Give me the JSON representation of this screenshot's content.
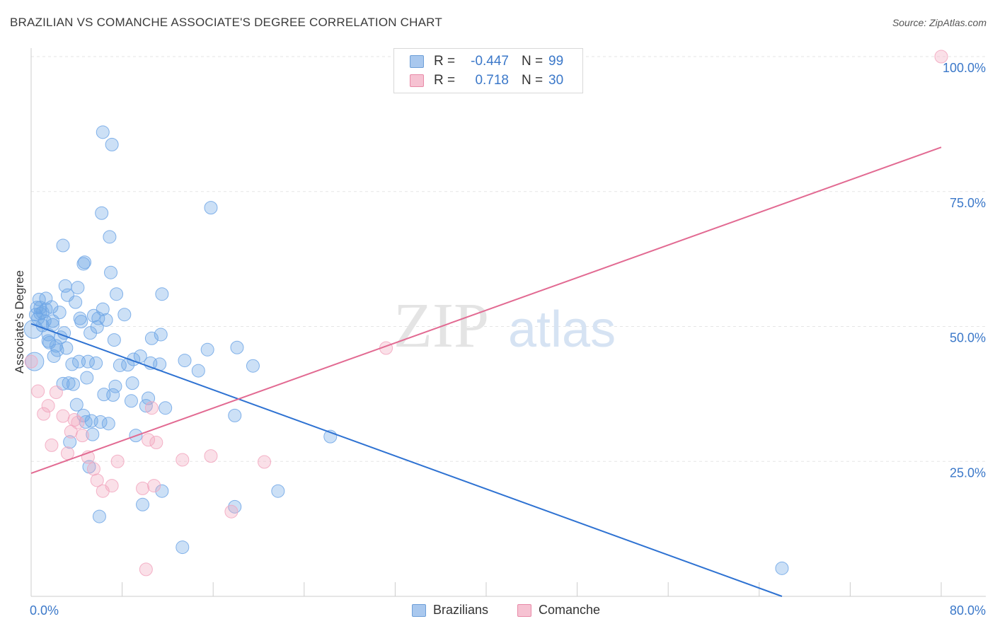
{
  "title": "BRAZILIAN VS COMANCHE ASSOCIATE'S DEGREE CORRELATION CHART",
  "source": "Source: ZipAtlas.com",
  "watermark": {
    "part1": "ZIP",
    "part2": "atlas"
  },
  "legend": {
    "rows": [
      {
        "r_label": "R =",
        "r_value": "-0.447",
        "n_label": "N =",
        "n_value": "99",
        "color": "#a9c8ee",
        "border": "#6e9fd8"
      },
      {
        "r_label": "R =",
        "r_value": "0.718",
        "n_label": "N =",
        "n_value": "30",
        "color": "#f6c2d2",
        "border": "#e88aa8"
      }
    ]
  },
  "bottom_legend": [
    {
      "label": "Brazilians",
      "color": "#a9c8ee",
      "border": "#6e9fd8"
    },
    {
      "label": "Comanche",
      "color": "#f6c2d2",
      "border": "#e88aa8"
    }
  ],
  "chart_data": {
    "type": "scatter",
    "title": "BRAZILIAN VS COMANCHE ASSOCIATE'S DEGREE CORRELATION CHART",
    "xlabel": "",
    "ylabel": "Associate's Degree",
    "xlim": [
      0,
      80
    ],
    "ylim": [
      0,
      102
    ],
    "x_tick_labels": {
      "left": "0.0%",
      "right": "80.0%"
    },
    "y_ticks": [
      {
        "value": 25,
        "label": "25.0%"
      },
      {
        "value": 50,
        "label": "50.0%"
      },
      {
        "value": 75,
        "label": "75.0%"
      },
      {
        "value": 100,
        "label": "100.0%"
      }
    ],
    "grid": true,
    "series": [
      {
        "name": "Brazilians",
        "color": "#6ea6e6",
        "line_color": "#2e72d2",
        "trend": {
          "x0": 0,
          "y0": 50.5,
          "x1": 66,
          "y1": 0
        },
        "points": [
          [
            0.2,
            49.5
          ],
          [
            0.3,
            43.5
          ],
          [
            0.4,
            52.2
          ],
          [
            0.5,
            53.5
          ],
          [
            0.6,
            51.5
          ],
          [
            0.7,
            55
          ],
          [
            0.8,
            52.4
          ],
          [
            1.0,
            52.6
          ],
          [
            1.0,
            50.2
          ],
          [
            1.2,
            51.0
          ],
          [
            1.3,
            53.2
          ],
          [
            1.5,
            48.5
          ],
          [
            1.6,
            47.0
          ],
          [
            1.8,
            53.6
          ],
          [
            1.9,
            51.0
          ],
          [
            2.0,
            44.5
          ],
          [
            2.2,
            46.4
          ],
          [
            2.3,
            45.6
          ],
          [
            2.5,
            52.6
          ],
          [
            2.6,
            48.0
          ],
          [
            2.8,
            39.4
          ],
          [
            2.9,
            48.8
          ],
          [
            3.0,
            57.5
          ],
          [
            3.2,
            55.8
          ],
          [
            3.3,
            39.5
          ],
          [
            3.4,
            28.6
          ],
          [
            3.6,
            43.0
          ],
          [
            3.7,
            39.3
          ],
          [
            3.9,
            54.5
          ],
          [
            4.0,
            35.5
          ],
          [
            4.1,
            57.2
          ],
          [
            4.2,
            43.5
          ],
          [
            4.3,
            51.5
          ],
          [
            4.4,
            50.9
          ],
          [
            4.6,
            33.5
          ],
          [
            4.7,
            61.9
          ],
          [
            4.8,
            32.3
          ],
          [
            4.9,
            40.5
          ],
          [
            5.0,
            43.5
          ],
          [
            5.1,
            24.0
          ],
          [
            5.2,
            48.8
          ],
          [
            5.3,
            32.5
          ],
          [
            5.4,
            30.0
          ],
          [
            5.5,
            52.0
          ],
          [
            5.7,
            43.2
          ],
          [
            5.9,
            51.5
          ],
          [
            6.0,
            14.8
          ],
          [
            6.1,
            32.3
          ],
          [
            6.2,
            71.0
          ],
          [
            6.3,
            53.2
          ],
          [
            6.4,
            37.4
          ],
          [
            6.6,
            51.2
          ],
          [
            6.8,
            32.0
          ],
          [
            6.9,
            66.6
          ],
          [
            7.0,
            60.0
          ],
          [
            7.2,
            37.3
          ],
          [
            7.3,
            47.5
          ],
          [
            7.4,
            38.9
          ],
          [
            7.5,
            56.0
          ],
          [
            8.2,
            52.2
          ],
          [
            8.5,
            42.9
          ],
          [
            8.8,
            36.2
          ],
          [
            8.9,
            39.5
          ],
          [
            9.0,
            43.9
          ],
          [
            9.2,
            29.8
          ],
          [
            9.6,
            44.5
          ],
          [
            9.8,
            17.0
          ],
          [
            10.1,
            35.3
          ],
          [
            10.3,
            36.7
          ],
          [
            10.6,
            47.8
          ],
          [
            11.3,
            43.0
          ],
          [
            11.4,
            48.5
          ],
          [
            11.5,
            56.0
          ],
          [
            11.5,
            19.5
          ],
          [
            11.8,
            34.9
          ],
          [
            13.3,
            9.1
          ],
          [
            13.5,
            43.7
          ],
          [
            14.7,
            41.8
          ],
          [
            15.5,
            45.7
          ],
          [
            15.8,
            72.0
          ],
          [
            17.9,
            16.6
          ],
          [
            17.9,
            33.5
          ],
          [
            18.1,
            46.1
          ],
          [
            19.5,
            42.7
          ],
          [
            21.7,
            19.5
          ],
          [
            26.3,
            29.6
          ],
          [
            66.0,
            5.2
          ],
          [
            6.3,
            86.0
          ],
          [
            7.1,
            83.7
          ],
          [
            2.8,
            65.0
          ],
          [
            4.6,
            61.6
          ],
          [
            1.3,
            55.2
          ],
          [
            0.8,
            53.5
          ],
          [
            1.9,
            50.3
          ],
          [
            3.1,
            46.0
          ],
          [
            5.8,
            49.9
          ],
          [
            7.8,
            42.8
          ],
          [
            10.5,
            43.2
          ],
          [
            1.5,
            47.3
          ]
        ]
      },
      {
        "name": "Comanche",
        "color": "#f2a6be",
        "line_color": "#e26a92",
        "trend": {
          "x0": 0,
          "y0": 22.8,
          "x1": 80,
          "y1": 83.2
        },
        "points": [
          [
            0.0,
            43.5
          ],
          [
            0.6,
            38.0
          ],
          [
            1.1,
            33.8
          ],
          [
            1.5,
            35.3
          ],
          [
            1.8,
            28.0
          ],
          [
            2.2,
            37.8
          ],
          [
            2.8,
            33.4
          ],
          [
            3.2,
            26.5
          ],
          [
            3.5,
            30.5
          ],
          [
            3.8,
            32.7
          ],
          [
            4.1,
            32.2
          ],
          [
            4.5,
            29.8
          ],
          [
            5.0,
            25.8
          ],
          [
            5.5,
            23.6
          ],
          [
            5.8,
            21.5
          ],
          [
            6.3,
            19.5
          ],
          [
            7.1,
            20.5
          ],
          [
            7.6,
            25.0
          ],
          [
            9.8,
            20.0
          ],
          [
            10.1,
            5.0
          ],
          [
            10.6,
            34.9
          ],
          [
            10.8,
            20.5
          ],
          [
            11.0,
            28.5
          ],
          [
            13.3,
            25.3
          ],
          [
            15.8,
            26.0
          ],
          [
            17.6,
            15.7
          ],
          [
            20.5,
            24.9
          ],
          [
            31.2,
            46.0
          ],
          [
            80.0,
            100.0
          ],
          [
            10.3,
            29.0
          ]
        ]
      }
    ]
  }
}
